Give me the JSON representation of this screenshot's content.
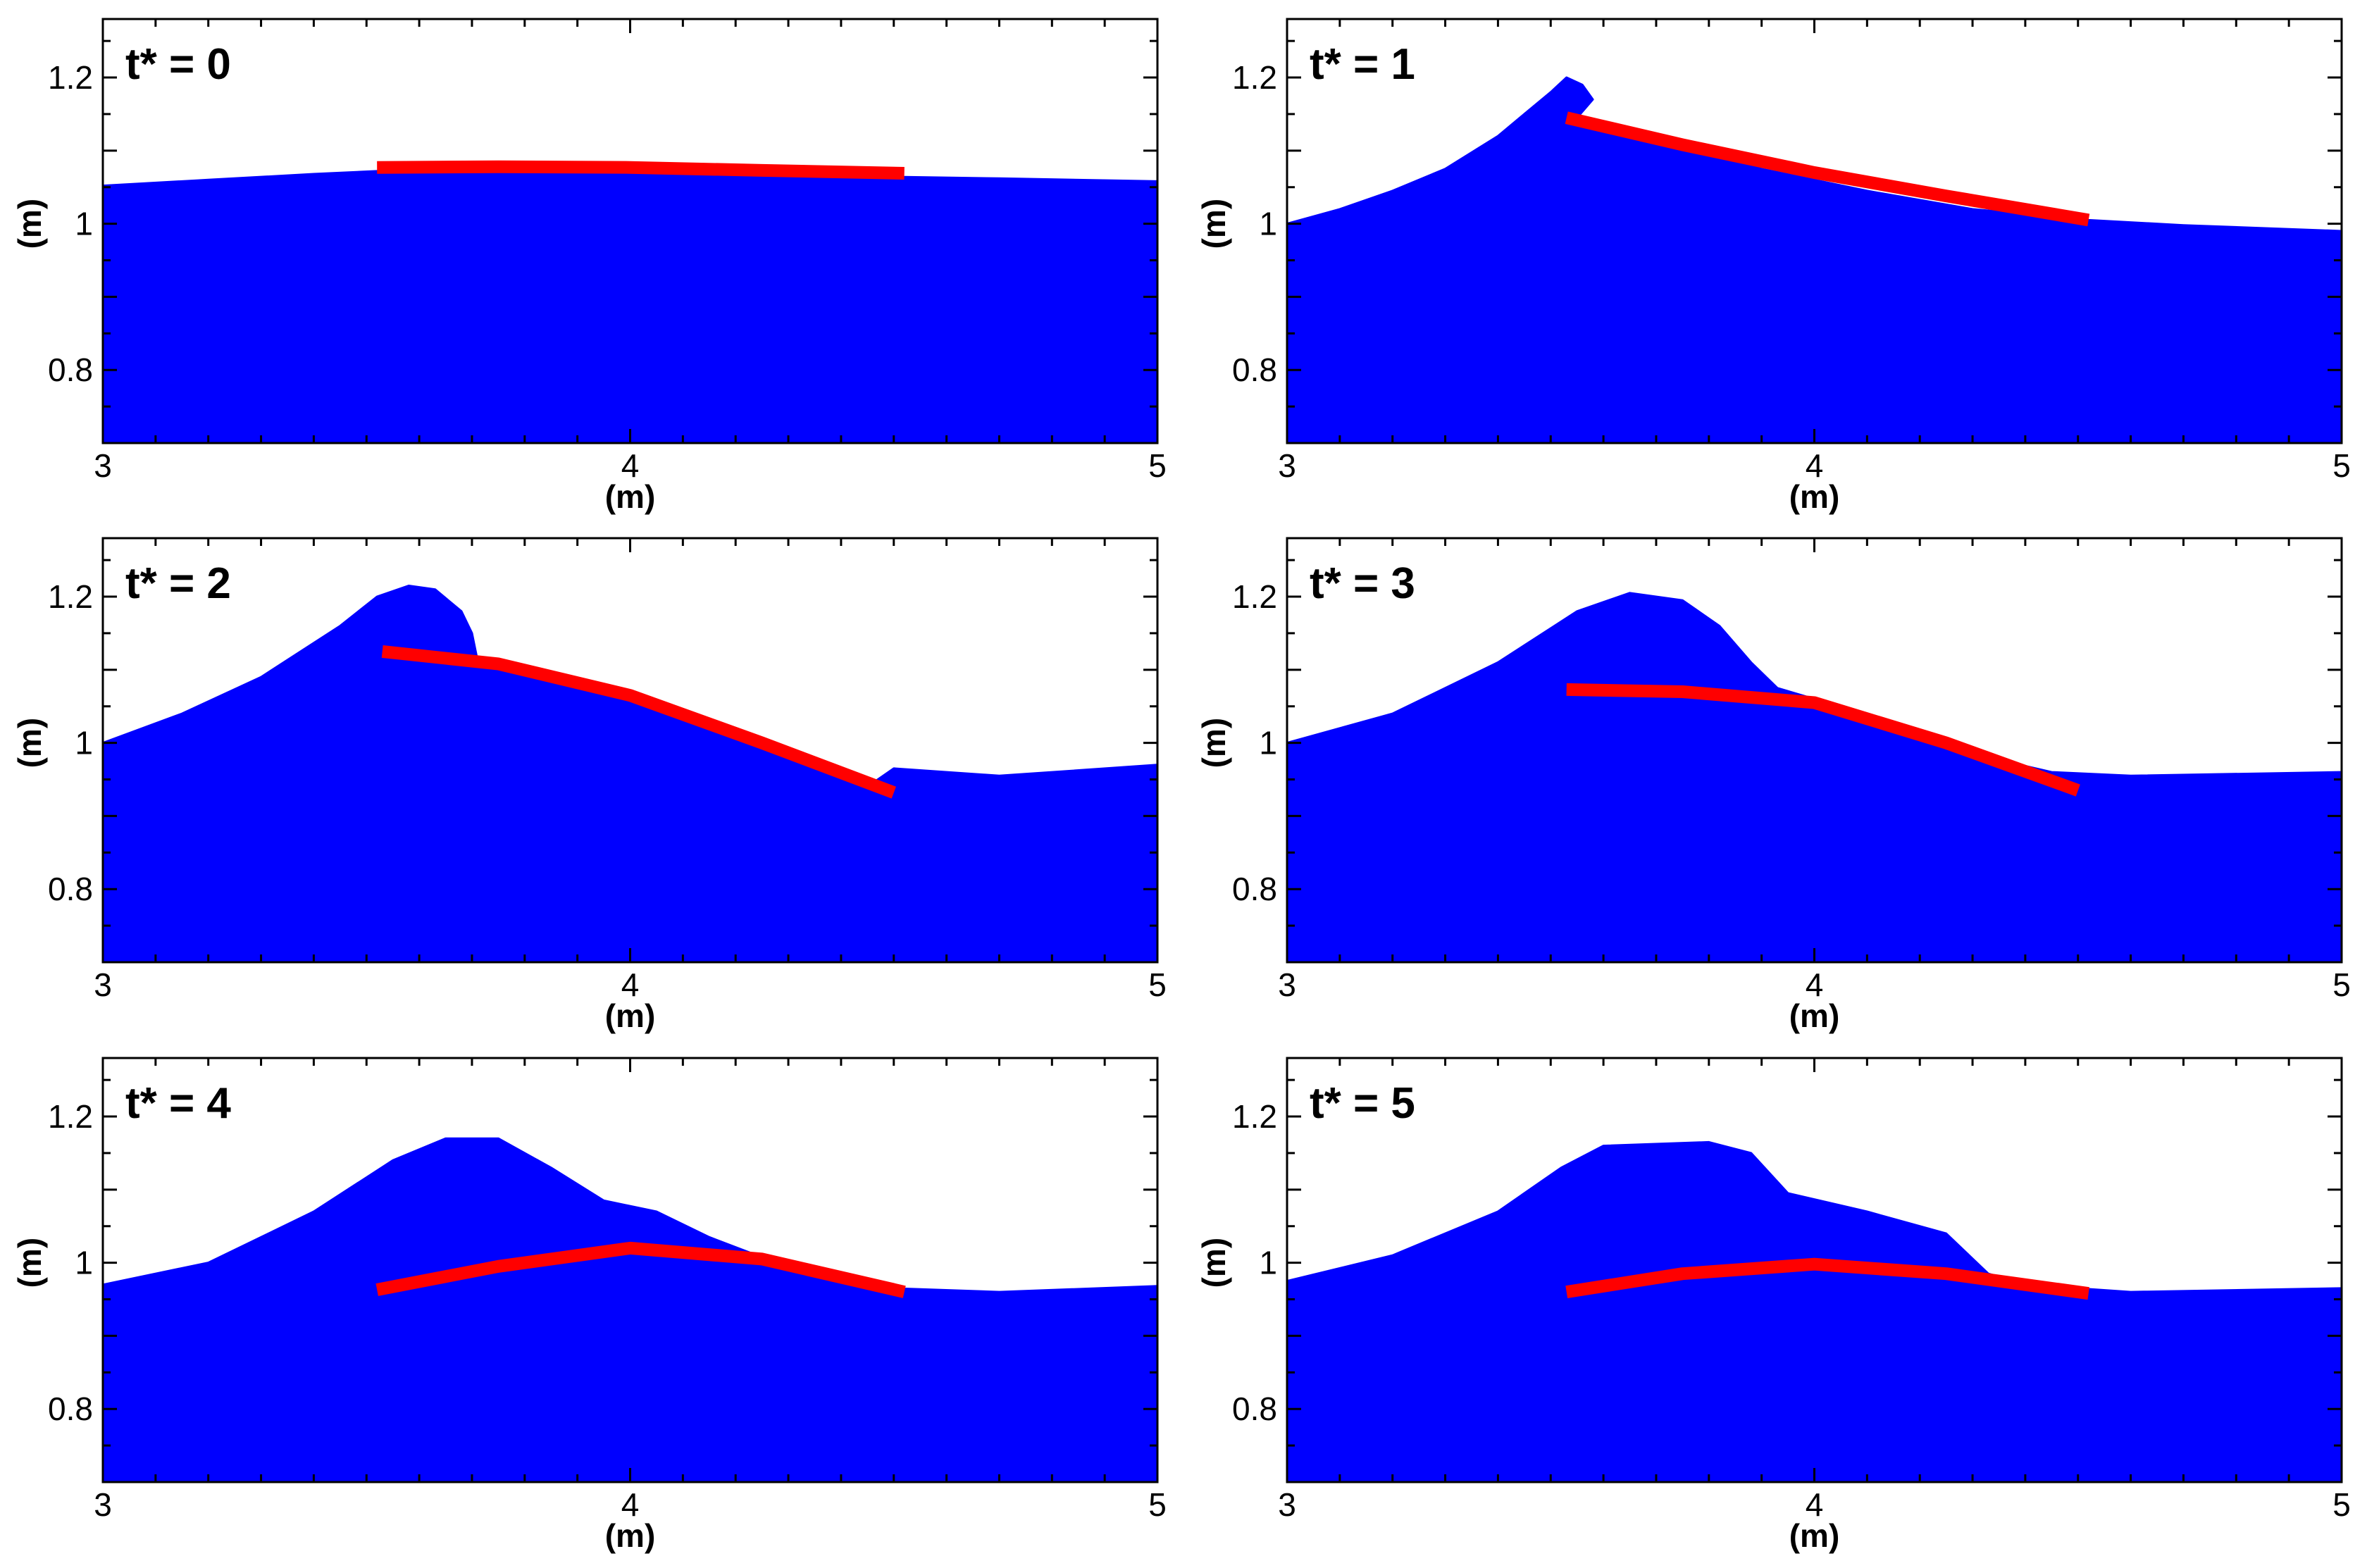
{
  "colors": {
    "water": "#0000FF",
    "plate": "#FF0000",
    "frame": "#000000",
    "background": "#FFFFFF"
  },
  "chart_data": [
    {
      "type": "area",
      "title": "t* = 0",
      "xlabel": "(m)",
      "ylabel": "(m)",
      "xlim": [
        3,
        5
      ],
      "ylim": [
        0.7,
        1.28
      ],
      "xticks": [
        "3",
        "4",
        "5"
      ],
      "yticks": [
        "0.8",
        "1",
        "1.2"
      ],
      "grid": false,
      "series": [
        {
          "role": "free-surface",
          "x": [
            3.0,
            3.2,
            3.4,
            3.52,
            3.8,
            4.1,
            4.4,
            4.52,
            4.7,
            5.0
          ],
          "y": [
            1.052,
            1.06,
            1.068,
            1.072,
            1.072,
            1.07,
            1.066,
            1.064,
            1.062,
            1.058
          ]
        },
        {
          "role": "plate",
          "x": [
            3.52,
            3.75,
            4.0,
            4.25,
            4.52
          ],
          "y": [
            1.077,
            1.078,
            1.077,
            1.073,
            1.069
          ]
        }
      ]
    },
    {
      "type": "area",
      "title": "t* = 1",
      "xlabel": "(m)",
      "ylabel": "(m)",
      "xlim": [
        3,
        5
      ],
      "ylim": [
        0.7,
        1.28
      ],
      "xticks": [
        "3",
        "4",
        "5"
      ],
      "yticks": [
        "0.8",
        "1",
        "1.2"
      ],
      "grid": false,
      "series": [
        {
          "role": "free-surface",
          "x": [
            3.0,
            3.1,
            3.2,
            3.3,
            3.4,
            3.45,
            3.5,
            3.53,
            3.56,
            3.58,
            3.55,
            3.7,
            3.9,
            4.1,
            4.3,
            4.52,
            4.7,
            5.0
          ],
          "y": [
            1.0,
            1.02,
            1.045,
            1.075,
            1.12,
            1.15,
            1.18,
            1.2,
            1.19,
            1.17,
            1.145,
            1.115,
            1.075,
            1.045,
            1.02,
            1.005,
            0.998,
            0.99
          ]
        },
        {
          "role": "plate",
          "x": [
            3.53,
            3.75,
            4.0,
            4.25,
            4.52
          ],
          "y": [
            1.145,
            1.108,
            1.07,
            1.038,
            1.005
          ]
        }
      ]
    },
    {
      "type": "area",
      "title": "t* = 2",
      "xlabel": "(m)",
      "ylabel": "(m)",
      "xlim": [
        3,
        5
      ],
      "ylim": [
        0.7,
        1.28
      ],
      "xticks": [
        "3",
        "4",
        "5"
      ],
      "yticks": [
        "0.8",
        "1",
        "1.2"
      ],
      "grid": false,
      "series": [
        {
          "role": "free-surface",
          "x": [
            3.0,
            3.15,
            3.3,
            3.45,
            3.52,
            3.58,
            3.63,
            3.68,
            3.7,
            3.71,
            3.75,
            4.0,
            4.2,
            4.45,
            4.5,
            4.7,
            5.0
          ],
          "y": [
            1.0,
            1.04,
            1.09,
            1.16,
            1.2,
            1.215,
            1.21,
            1.18,
            1.15,
            1.115,
            1.11,
            1.065,
            1.01,
            0.94,
            0.965,
            0.955,
            0.97
          ]
        },
        {
          "role": "plate",
          "x": [
            3.53,
            3.75,
            4.0,
            4.25,
            4.5
          ],
          "y": [
            1.125,
            1.108,
            1.065,
            1.0,
            0.932
          ]
        }
      ]
    },
    {
      "type": "area",
      "title": "t* = 3",
      "xlabel": "(m)",
      "ylabel": "(m)",
      "xlim": [
        3,
        5
      ],
      "ylim": [
        0.7,
        1.28
      ],
      "xticks": [
        "3",
        "4",
        "5"
      ],
      "yticks": [
        "0.8",
        "1",
        "1.2"
      ],
      "grid": false,
      "series": [
        {
          "role": "free-surface",
          "x": [
            3.0,
            3.2,
            3.4,
            3.55,
            3.65,
            3.75,
            3.82,
            3.88,
            3.93,
            4.0,
            4.3,
            4.45,
            4.6,
            5.0
          ],
          "y": [
            1.0,
            1.04,
            1.11,
            1.18,
            1.205,
            1.195,
            1.16,
            1.11,
            1.075,
            1.06,
            0.985,
            0.96,
            0.955,
            0.96
          ]
        },
        {
          "role": "plate",
          "x": [
            3.53,
            3.75,
            4.0,
            4.25,
            4.5
          ],
          "y": [
            1.073,
            1.07,
            1.055,
            1.0,
            0.935
          ]
        }
      ]
    },
    {
      "type": "area",
      "title": "t* = 4",
      "xlabel": "(m)",
      "ylabel": "(m)",
      "xlim": [
        3,
        5
      ],
      "ylim": [
        0.7,
        1.28
      ],
      "xticks": [
        "3",
        "4",
        "5"
      ],
      "yticks": [
        "0.8",
        "1",
        "1.2"
      ],
      "grid": false,
      "series": [
        {
          "role": "free-surface",
          "x": [
            3.0,
            3.2,
            3.4,
            3.55,
            3.65,
            3.75,
            3.85,
            3.95,
            4.05,
            4.15,
            4.35,
            4.5,
            4.7,
            5.0
          ],
          "y": [
            0.97,
            1.0,
            1.07,
            1.14,
            1.17,
            1.17,
            1.13,
            1.085,
            1.07,
            1.035,
            0.98,
            0.965,
            0.96,
            0.968
          ]
        },
        {
          "role": "plate",
          "x": [
            3.52,
            3.75,
            4.0,
            4.25,
            4.52
          ],
          "y": [
            0.963,
            0.995,
            1.02,
            1.005,
            0.96
          ]
        }
      ]
    },
    {
      "type": "area",
      "title": "t* = 5",
      "xlabel": "(m)",
      "ylabel": "(m)",
      "xlim": [
        3,
        5
      ],
      "ylim": [
        0.7,
        1.28
      ],
      "xticks": [
        "3",
        "4",
        "5"
      ],
      "yticks": [
        "0.8",
        "1",
        "1.2"
      ],
      "grid": false,
      "series": [
        {
          "role": "free-surface",
          "x": [
            3.0,
            3.2,
            3.4,
            3.52,
            3.6,
            3.8,
            3.88,
            3.95,
            4.1,
            4.25,
            4.33,
            4.4,
            4.6,
            5.0
          ],
          "y": [
            0.975,
            1.01,
            1.07,
            1.13,
            1.16,
            1.165,
            1.15,
            1.095,
            1.07,
            1.04,
            0.985,
            0.97,
            0.96,
            0.965
          ]
        },
        {
          "role": "plate",
          "x": [
            3.53,
            3.75,
            4.0,
            4.25,
            4.52
          ],
          "y": [
            0.96,
            0.985,
            0.998,
            0.985,
            0.958
          ]
        }
      ]
    }
  ]
}
